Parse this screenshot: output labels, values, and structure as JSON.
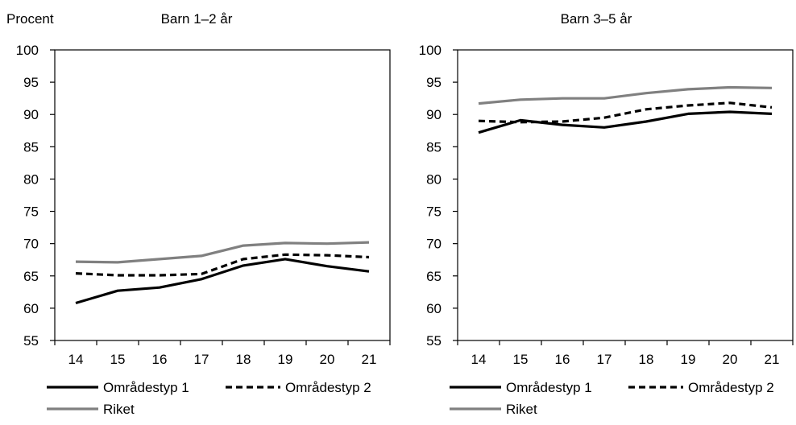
{
  "figure": {
    "ylabel": "Procent"
  },
  "colors": {
    "omradestyp1": "#000000",
    "omradestyp2": "#000000",
    "riket": "#808080",
    "axis": "#000000"
  },
  "chart_data": [
    {
      "type": "line",
      "title": "Barn 1–2 år",
      "xlabel": "",
      "ylabel": "Procent",
      "x": [
        "14",
        "15",
        "16",
        "17",
        "18",
        "19",
        "20",
        "21"
      ],
      "ylim": [
        55,
        100
      ],
      "yticks": [
        55,
        60,
        65,
        70,
        75,
        80,
        85,
        90,
        95,
        100
      ],
      "grid": false,
      "legend_position": "bottom",
      "series": [
        {
          "name": "Områdestyp 1",
          "style": "solid",
          "color": "#000000",
          "values": [
            60.8,
            62.7,
            63.2,
            64.5,
            66.6,
            67.6,
            66.5,
            65.7
          ]
        },
        {
          "name": "Områdestyp 2",
          "style": "dashed",
          "color": "#000000",
          "values": [
            65.4,
            65.1,
            65.1,
            65.3,
            67.6,
            68.3,
            68.2,
            67.9
          ]
        },
        {
          "name": "Riket",
          "style": "solid",
          "color": "#808080",
          "values": [
            67.2,
            67.1,
            67.6,
            68.1,
            69.7,
            70.1,
            70.0,
            70.2
          ]
        }
      ]
    },
    {
      "type": "line",
      "title": "Barn 3–5 år",
      "xlabel": "",
      "ylabel": "",
      "x": [
        "14",
        "15",
        "16",
        "17",
        "18",
        "19",
        "20",
        "21"
      ],
      "ylim": [
        55,
        100
      ],
      "yticks": [
        55,
        60,
        65,
        70,
        75,
        80,
        85,
        90,
        95,
        100
      ],
      "grid": false,
      "legend_position": "bottom",
      "series": [
        {
          "name": "Områdestyp 1",
          "style": "solid",
          "color": "#000000",
          "values": [
            87.2,
            89.1,
            88.4,
            88.0,
            88.9,
            90.1,
            90.4,
            90.1
          ]
        },
        {
          "name": "Områdestyp 2",
          "style": "dashed",
          "color": "#000000",
          "values": [
            89.0,
            88.8,
            88.9,
            89.5,
            90.8,
            91.4,
            91.8,
            91.1
          ]
        },
        {
          "name": "Riket",
          "style": "solid",
          "color": "#808080",
          "values": [
            91.7,
            92.3,
            92.5,
            92.5,
            93.3,
            93.9,
            94.2,
            94.1
          ]
        }
      ]
    }
  ]
}
